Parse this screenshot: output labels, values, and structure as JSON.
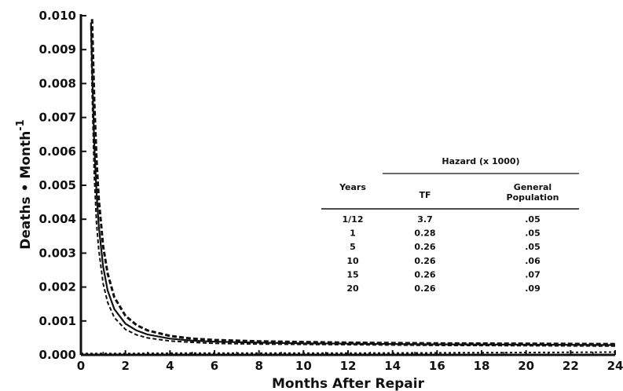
{
  "chart_data": {
    "type": "line",
    "xlabel": "Months After Repair",
    "ylabel": "Deaths • Month",
    "ylabel_superscript": "-1",
    "xlim": [
      0,
      24
    ],
    "ylim": [
      0,
      0.01
    ],
    "x_ticks": [
      "0",
      "2",
      "4",
      "6",
      "8",
      "10",
      "12",
      "14",
      "16",
      "18",
      "20",
      "22",
      "24"
    ],
    "y_ticks": [
      "0.000",
      "0.001",
      "0.002",
      "0.003",
      "0.004",
      "0.005",
      "0.006",
      "0.007",
      "0.008",
      "0.009",
      "0.010"
    ],
    "grid": false,
    "series": [
      {
        "style": "solid",
        "x": [
          0.45,
          0.5,
          0.6,
          0.7,
          0.8,
          1.0,
          1.2,
          1.5,
          2,
          2.5,
          3,
          4,
          5,
          6,
          8,
          10,
          12,
          16,
          20,
          24
        ],
        "y": [
          0.0098,
          0.0085,
          0.0062,
          0.0048,
          0.0038,
          0.0026,
          0.0019,
          0.00135,
          0.00092,
          0.00072,
          0.0006,
          0.00048,
          0.00042,
          0.00039,
          0.00036,
          0.00034,
          0.00033,
          0.00031,
          0.0003,
          0.00029
        ]
      },
      {
        "style": "dashed-upper",
        "x": [
          0.5,
          0.6,
          0.7,
          0.8,
          1.0,
          1.2,
          1.5,
          2,
          2.5,
          3,
          4,
          5,
          6,
          8,
          10,
          12,
          16,
          20,
          24
        ],
        "y": [
          0.0099,
          0.0075,
          0.0058,
          0.0046,
          0.0032,
          0.0024,
          0.0017,
          0.00115,
          0.00088,
          0.00072,
          0.00056,
          0.00048,
          0.00044,
          0.0004,
          0.00038,
          0.00036,
          0.00034,
          0.00033,
          0.00032
        ]
      },
      {
        "style": "dashed-lower",
        "x": [
          0.45,
          0.5,
          0.6,
          0.7,
          0.8,
          1.0,
          1.2,
          1.5,
          2,
          2.5,
          3,
          4,
          5,
          6,
          8,
          10,
          12,
          16,
          20,
          24
        ],
        "y": [
          0.0097,
          0.0078,
          0.0053,
          0.0039,
          0.0031,
          0.0021,
          0.00155,
          0.0011,
          0.00075,
          0.00059,
          0.0005,
          0.00041,
          0.00037,
          0.00034,
          0.00032,
          0.00031,
          0.0003,
          0.00028,
          0.00027,
          0.00026
        ]
      },
      {
        "style": "dotted-general",
        "x": [
          0,
          2,
          4,
          8,
          12,
          16,
          20,
          24
        ],
        "y": [
          4e-05,
          4e-05,
          5e-05,
          5e-05,
          5e-05,
          6e-05,
          7e-05,
          8e-05
        ]
      }
    ],
    "table": {
      "header_group": "Hazard (x 1000)",
      "col_years": "Years",
      "col_tf": "TF",
      "col_gen_line1": "General",
      "col_gen_line2": "Population",
      "rows": [
        {
          "years": "1/12",
          "tf": "3.7",
          "gen": ".05"
        },
        {
          "years": "1",
          "tf": "0.28",
          "gen": ".05"
        },
        {
          "years": "5",
          "tf": "0.26",
          "gen": ".05"
        },
        {
          "years": "10",
          "tf": "0.26",
          "gen": ".06"
        },
        {
          "years": "15",
          "tf": "0.26",
          "gen": ".07"
        },
        {
          "years": "20",
          "tf": "0.26",
          "gen": ".09"
        }
      ]
    }
  }
}
